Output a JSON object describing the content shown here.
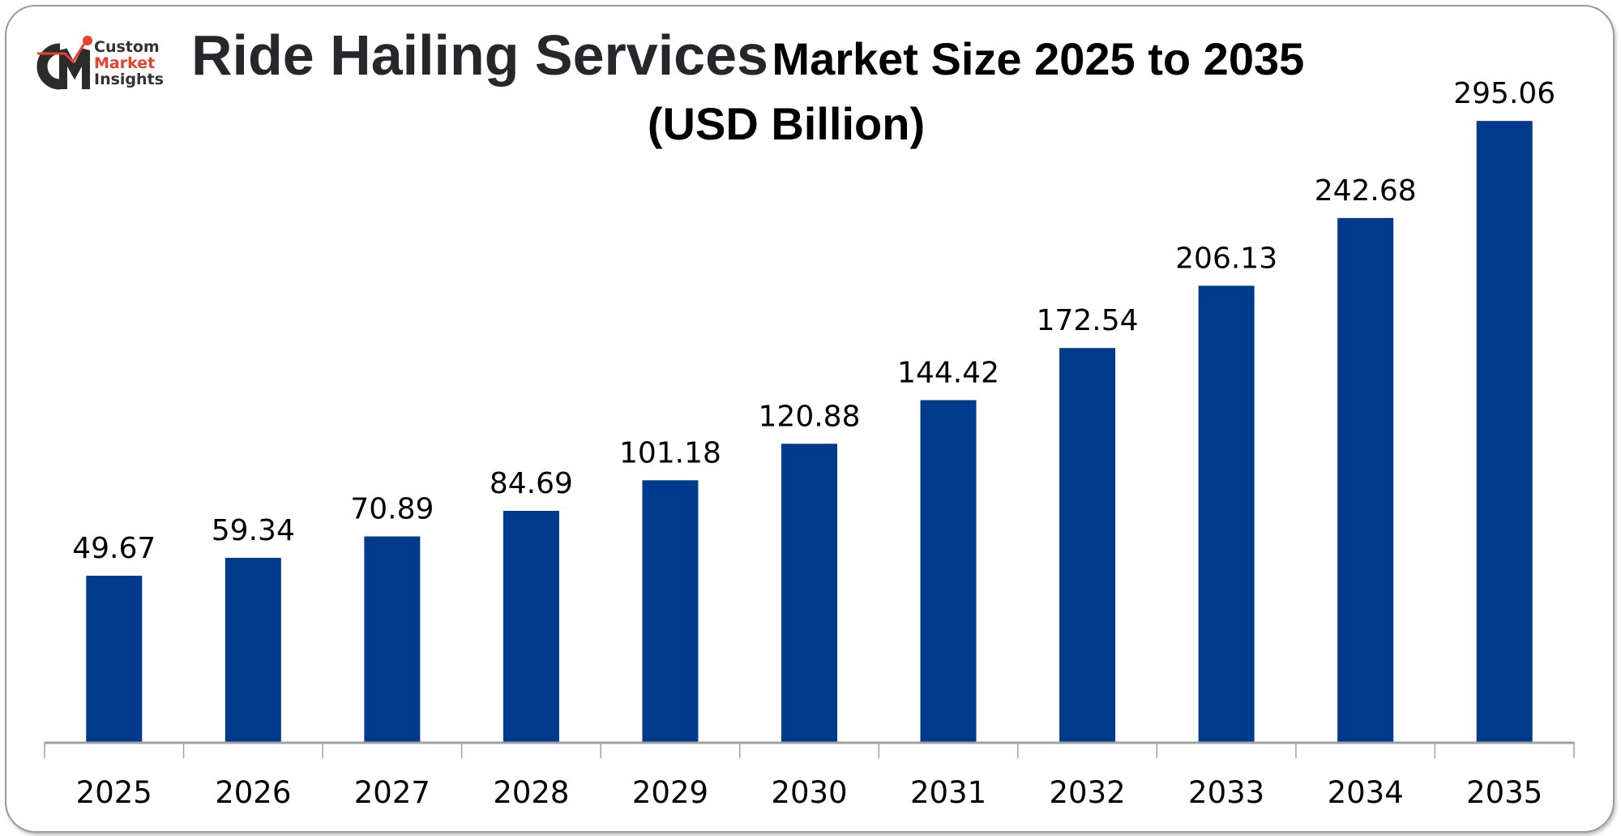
{
  "logo": {
    "line1": "Custom",
    "line2": "Market",
    "line3": "Insights",
    "accent": "#e8412c"
  },
  "chart_data": {
    "type": "bar",
    "title_main": "Ride Hailing Services",
    "title_rest": "Market Size 2025 to 2035",
    "subtitle": "(USD Billion)",
    "categories": [
      "2025",
      "2026",
      "2027",
      "2028",
      "2029",
      "2030",
      "2031",
      "2032",
      "2033",
      "2034",
      "2035"
    ],
    "values": [
      49.67,
      59.34,
      70.89,
      84.69,
      101.18,
      120.88,
      144.42,
      172.54,
      206.13,
      242.68,
      295.06
    ],
    "labels": [
      "49.67",
      "59.34",
      "70.89",
      "84.69",
      "101.18",
      "120.88",
      "144.42",
      "172.54",
      "206.13",
      "242.68",
      "295.06"
    ],
    "xlabel": "",
    "ylabel": "",
    "ylim": [
      -40,
      310
    ],
    "grid": false,
    "bar_color": "#003a8c"
  }
}
